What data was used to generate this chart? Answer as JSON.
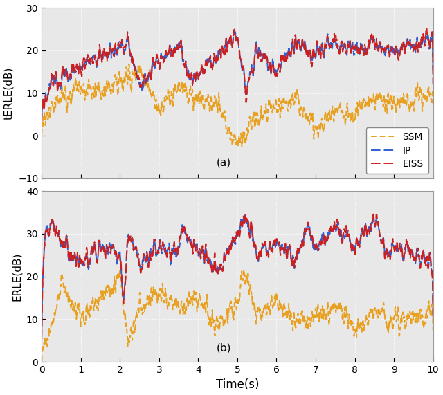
{
  "title_a": "(a)",
  "title_b": "(b)",
  "xlabel": "Time(s)",
  "ylabel_a": "tERLE(dB)",
  "ylabel_b": "ERLE(dB)",
  "xlim": [
    0,
    10
  ],
  "ylim_a": [
    -10,
    30
  ],
  "ylim_b": [
    0,
    40
  ],
  "yticks_a": [
    -10,
    0,
    10,
    20,
    30
  ],
  "yticks_b": [
    0,
    10,
    20,
    30,
    40
  ],
  "xticks": [
    0,
    1,
    2,
    3,
    4,
    5,
    6,
    7,
    8,
    9,
    10
  ],
  "legend_labels": [
    "SSM",
    "IP",
    "EISS"
  ],
  "colors_ssm": "#E8A020",
  "colors_ip": "#3060D0",
  "colors_eiss": "#CC2020",
  "linewidth": 1.4,
  "bg_color": "#E8E8E8",
  "grid_color": "#FFFFFF",
  "seed": 7
}
